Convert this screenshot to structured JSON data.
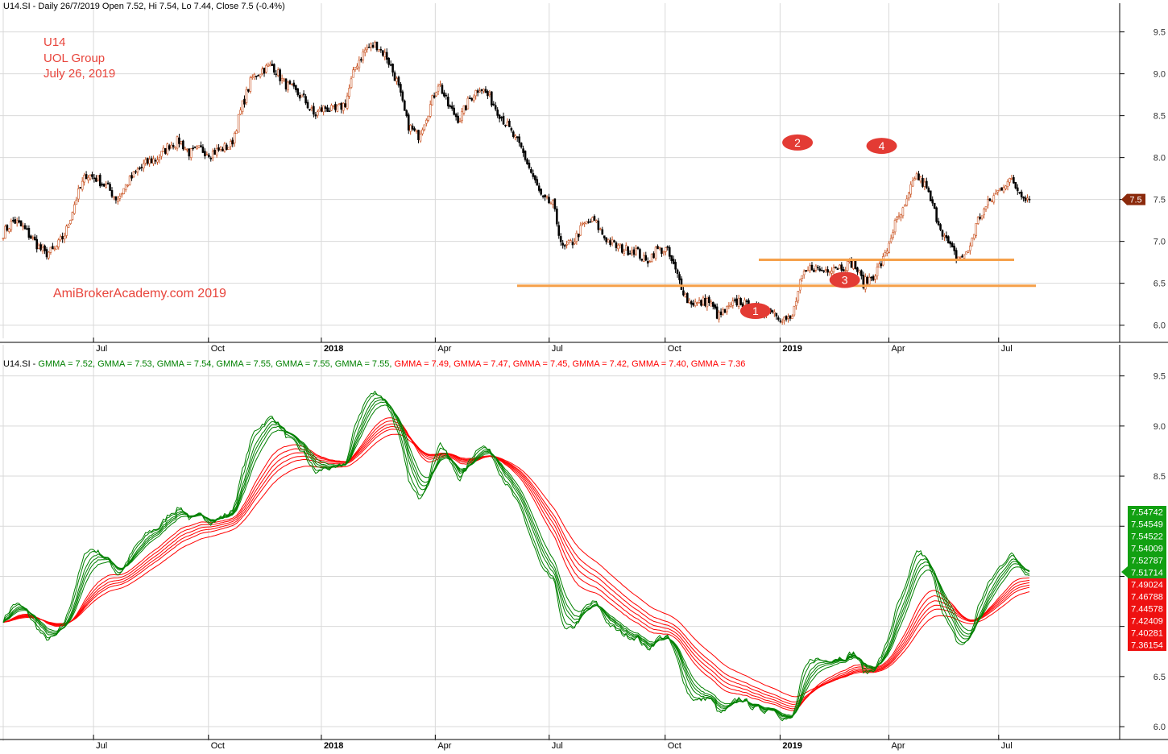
{
  "header": {
    "price_line": "U14.SI - Daily 26/7/2019 Open 7.52, Hi 7.54, Lo 7.44, Close 7.5 (-0.4%)",
    "gmma_prefix": "U14.SI - ",
    "gmma_labels": [
      {
        "text": "GMMA = 7.52,",
        "color": "#008000"
      },
      {
        "text": "GMMA = 7.53,",
        "color": "#008000"
      },
      {
        "text": "GMMA = 7.54,",
        "color": "#008000"
      },
      {
        "text": "GMMA = 7.55,",
        "color": "#008000"
      },
      {
        "text": "GMMA = 7.55,",
        "color": "#008000"
      },
      {
        "text": "GMMA = 7.55,",
        "color": "#008000"
      },
      {
        "text": "GMMA = 7.49,",
        "color": "#ff0000"
      },
      {
        "text": "GMMA = 7.47,",
        "color": "#ff0000"
      },
      {
        "text": "GMMA = 7.45,",
        "color": "#ff0000"
      },
      {
        "text": "GMMA = 7.42,",
        "color": "#ff0000"
      },
      {
        "text": "GMMA = 7.40,",
        "color": "#ff0000"
      },
      {
        "text": "GMMA = 7.36",
        "color": "#ff0000"
      }
    ]
  },
  "annotation": {
    "ticker": "U14",
    "company": "UOL Group",
    "date": "July 26, 2019",
    "watermark": "AmiBrokerAcademy.com  2019",
    "color": "#e8453c"
  },
  "colors": {
    "up_wick": "#c8501e",
    "down_body": "#000000",
    "short_ma": "#008000",
    "long_ma": "#ff0000",
    "support": "#f5a04a",
    "marker": "#e33b34",
    "price_tag": "#8b2a0c",
    "grid": "#d9d9d9"
  },
  "chart_data": [
    {
      "type": "candlestick",
      "title": "U14.SI - Daily 26/7/2019 Open 7.52, Hi 7.54, Lo 7.44, Close 7.5 (-0.4%)",
      "ylim": [
        5.92,
        9.65
      ],
      "yticks": [
        6.0,
        6.5,
        7.0,
        7.5,
        8.0,
        8.5,
        9.0,
        9.5
      ],
      "ytick_labels": [
        "6.0",
        "6.5",
        "7.0",
        "7.5",
        "8.0",
        "8.5",
        "9.0",
        "9.5"
      ],
      "xlabels": [
        "Jul",
        "Oct",
        "2018",
        "Apr",
        "Jul",
        "Oct",
        "2019",
        "Apr",
        "Jul"
      ],
      "last_close_label": "7.5",
      "last_close": 7.5,
      "grid": "horizontal",
      "close_path": [
        7.1,
        7.25,
        7.15,
        7.0,
        6.85,
        6.9,
        7.1,
        7.5,
        7.8,
        7.75,
        7.65,
        7.5,
        7.7,
        7.85,
        7.95,
        8.0,
        8.15,
        8.2,
        8.05,
        8.1,
        8.05,
        8.1,
        8.15,
        8.6,
        8.95,
        9.05,
        9.1,
        8.9,
        8.8,
        8.7,
        8.5,
        8.6,
        8.55,
        8.65,
        9.1,
        9.3,
        9.35,
        9.2,
        8.9,
        8.4,
        8.25,
        8.55,
        8.9,
        8.6,
        8.45,
        8.7,
        8.85,
        8.7,
        8.5,
        8.3,
        8.1,
        7.8,
        7.5,
        7.45,
        6.9,
        7.0,
        7.2,
        7.25,
        7.05,
        6.95,
        6.9,
        6.9,
        6.75,
        6.9,
        6.9,
        6.6,
        6.3,
        6.25,
        6.3,
        6.1,
        6.2,
        6.3,
        6.2,
        6.15,
        6.2,
        6.1,
        6.05,
        6.55,
        6.7,
        6.65,
        6.7,
        6.7,
        6.75,
        6.5,
        6.6,
        6.8,
        7.2,
        7.4,
        7.8,
        7.65,
        7.3,
        7.0,
        6.8,
        6.85,
        7.25,
        7.45,
        7.6,
        7.75,
        7.6,
        7.5
      ],
      "support_levels": [
        6.78,
        6.47
      ],
      "markers": [
        {
          "label": "1",
          "x_frac": 0.733,
          "y": 6.17
        },
        {
          "label": "2",
          "x_frac": 0.774,
          "y": 8.18
        },
        {
          "label": "3",
          "x_frac": 0.82,
          "y": 6.54
        },
        {
          "label": "4",
          "x_frac": 0.856,
          "y": 8.14
        }
      ]
    },
    {
      "type": "line",
      "title": "GMMA",
      "ylim": [
        5.92,
        9.65
      ],
      "yticks": [
        6.0,
        6.5,
        7.0,
        7.5,
        8.0,
        8.5,
        9.0,
        9.5
      ],
      "ytick_labels": [
        "6.0",
        "6.5",
        "",
        "",
        "",
        "8.5",
        "9.0",
        "9.5"
      ],
      "xlabels": [
        "Jul",
        "Oct",
        "2018",
        "Apr",
        "Jul",
        "Oct",
        "2019",
        "Apr",
        "Jul"
      ],
      "grid": "horizontal",
      "last_values_short": [
        "7.54742",
        "7.54549",
        "7.54522",
        "7.54009",
        "7.52787",
        "7.51714"
      ],
      "last_values_long": [
        "7.49024",
        "7.46788",
        "7.44578",
        "7.42409",
        "7.40281",
        "7.36154"
      ],
      "series_short": [
        "GMMA",
        "GMMA",
        "GMMA",
        "GMMA",
        "GMMA",
        "GMMA"
      ],
      "series_long": [
        "GMMA",
        "GMMA",
        "GMMA",
        "GMMA",
        "GMMA",
        "GMMA"
      ]
    }
  ]
}
